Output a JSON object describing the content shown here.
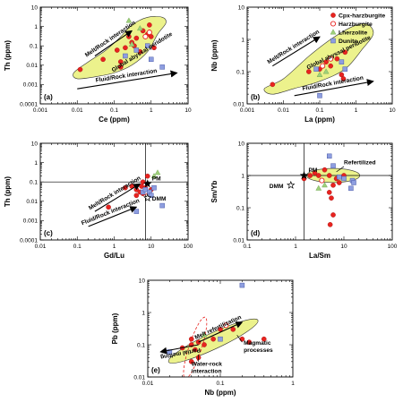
{
  "legend": [
    {
      "label": "Cpx-harzburgite",
      "marker": "filled-circle",
      "color": "#e8231f"
    },
    {
      "label": "Harzburgite",
      "marker": "open-circle",
      "color": "#e8231f"
    },
    {
      "label": "Lherzolite",
      "marker": "triangle",
      "color": "#9ed07a"
    },
    {
      "label": "Dunite",
      "marker": "square",
      "color": "#8e9ee0"
    }
  ],
  "colors": {
    "field_fill": "#ecf28c",
    "field_stroke": "#333333",
    "cpx_harzburgite": "#e8231f",
    "harzburgite": "#e8231f",
    "lherzolite": "#9ed07a",
    "dunite": "#8e9ee0"
  },
  "chart_data": [
    {
      "id": "a",
      "type": "scatter",
      "panel_label": "(a)",
      "xlabel": "Ce (ppm)",
      "ylabel": "Th (ppm)",
      "xscale": "log",
      "yscale": "log",
      "xlim": [
        0.001,
        10
      ],
      "ylim": [
        0.0001,
        10
      ],
      "xticks": [
        {
          "v": 0.001,
          "t": "0.001"
        },
        {
          "v": 0.01,
          "t": "0.01"
        },
        {
          "v": 0.1,
          "t": "0.1"
        },
        {
          "v": 1,
          "t": "1"
        },
        {
          "v": 10,
          "t": "10"
        }
      ],
      "yticks": [
        {
          "v": 0.0001,
          "t": "0.0001"
        },
        {
          "v": 0.001,
          "t": "0.001"
        },
        {
          "v": 0.01,
          "t": "0.01"
        },
        {
          "v": 0.1,
          "t": "0.1"
        },
        {
          "v": 1,
          "t": "1"
        },
        {
          "v": 10,
          "t": "10"
        }
      ],
      "field": {
        "label": "Global abyssal peridotite",
        "outline": [
          [
            0.008,
            0.004
          ],
          [
            0.02,
            0.015
          ],
          [
            0.06,
            0.06
          ],
          [
            0.15,
            0.3
          ],
          [
            0.3,
            1.2
          ],
          [
            0.8,
            3
          ],
          [
            2,
            3
          ],
          [
            2.5,
            1.5
          ],
          [
            1.5,
            0.4
          ],
          [
            0.8,
            0.05
          ],
          [
            0.3,
            0.01
          ],
          [
            0.1,
            0.004
          ],
          [
            0.03,
            0.0025
          ],
          [
            0.01,
            0.002
          ]
        ]
      },
      "annotations": [
        {
          "text": "Melt/Rock interaction",
          "arrow": [
            [
              0.03,
              0.03
            ],
            [
              0.3,
              0.6
            ]
          ]
        },
        {
          "text": "Fluid/Rock interaction",
          "arrow": [
            [
              0.01,
              0.0006
            ],
            [
              5,
              0.004
            ]
          ]
        }
      ],
      "series": [
        {
          "name": "Cpx-harzburgite",
          "points": [
            [
              0.012,
              0.006
            ],
            [
              0.05,
              0.02
            ],
            [
              0.12,
              0.06
            ],
            [
              0.15,
              0.015
            ],
            [
              0.2,
              0.08
            ],
            [
              0.25,
              0.3
            ],
            [
              0.3,
              0.15
            ],
            [
              0.35,
              0.1
            ],
            [
              0.4,
              0.25
            ],
            [
              0.5,
              0.05
            ],
            [
              0.6,
              0.6
            ],
            [
              0.8,
              0.4
            ],
            [
              1,
              0.3
            ],
            [
              1.2,
              0.08
            ],
            [
              0.15,
              0.008
            ],
            [
              0.9,
              1.2
            ]
          ]
        },
        {
          "name": "Harzburgite",
          "points": [
            [
              0.7,
              0.3
            ],
            [
              0.9,
              0.5
            ]
          ]
        },
        {
          "name": "Lherzolite",
          "points": [
            [
              0.25,
              2
            ],
            [
              0.3,
              0.12
            ],
            [
              0.5,
              0.8
            ]
          ]
        },
        {
          "name": "Dunite",
          "points": [
            [
              0.4,
              0.06
            ],
            [
              1,
              0.02
            ],
            [
              2,
              0.008
            ],
            [
              0.2,
              0.03
            ],
            [
              0.8,
              0.1
            ]
          ]
        }
      ]
    },
    {
      "id": "b",
      "type": "scatter",
      "panel_label": "(b)",
      "xlabel": "La (ppm)",
      "ylabel": "Nb (ppm)",
      "xscale": "log",
      "yscale": "log",
      "xlim": [
        0.001,
        10
      ],
      "ylim": [
        0.01,
        10
      ],
      "xticks": [
        {
          "v": 0.001,
          "t": "0.001"
        },
        {
          "v": 0.01,
          "t": "0.01"
        },
        {
          "v": 0.1,
          "t": "0.1"
        },
        {
          "v": 1,
          "t": "1"
        },
        {
          "v": 10,
          "t": "10"
        }
      ],
      "yticks": [
        {
          "v": 0.01,
          "t": "0.01"
        },
        {
          "v": 0.1,
          "t": "0.1"
        },
        {
          "v": 1,
          "t": "1"
        },
        {
          "v": 10,
          "t": "10"
        }
      ],
      "field": {
        "label": "Global abyssal peridotite",
        "outline": [
          [
            0.003,
            0.03
          ],
          [
            0.01,
            0.06
          ],
          [
            0.05,
            0.3
          ],
          [
            0.2,
            1
          ],
          [
            0.8,
            2.5
          ],
          [
            2,
            3
          ],
          [
            3,
            1.5
          ],
          [
            1.5,
            0.5
          ],
          [
            0.5,
            0.12
          ],
          [
            0.1,
            0.05
          ],
          [
            0.02,
            0.03
          ],
          [
            0.005,
            0.02
          ]
        ]
      },
      "annotations": [
        {
          "text": "Melt/Rock interaction",
          "arrow": [
            [
              0.005,
              0.15
            ],
            [
              0.1,
              1.2
            ]
          ]
        },
        {
          "text": "Fluid/Rock interaction",
          "arrow": [
            [
              0.02,
              0.018
            ],
            [
              3,
              0.05
            ]
          ]
        }
      ],
      "series": [
        {
          "name": "Cpx-harzburgite",
          "points": [
            [
              0.005,
              0.04
            ],
            [
              0.05,
              0.1
            ],
            [
              0.1,
              0.12
            ],
            [
              0.15,
              0.2
            ],
            [
              0.2,
              0.15
            ],
            [
              0.4,
              0.08
            ],
            [
              0.45,
              0.06
            ],
            [
              0.3,
              0.25
            ],
            [
              0.5,
              0.4
            ]
          ]
        },
        {
          "name": "Harzburgite",
          "points": [
            [
              0.12,
              0.15
            ],
            [
              0.2,
              0.25
            ]
          ]
        },
        {
          "name": "Lherzolite",
          "points": [
            [
              0.1,
              0.08
            ],
            [
              0.15,
              0.1
            ]
          ]
        },
        {
          "name": "Dunite",
          "points": [
            [
              0.08,
              0.12
            ],
            [
              0.4,
              0.2
            ],
            [
              0.5,
              0.12
            ],
            [
              0.1,
              0.018
            ]
          ]
        }
      ]
    },
    {
      "id": "c",
      "type": "scatter",
      "panel_label": "(c)",
      "xlabel": "Gd/Lu",
      "ylabel": "Th (ppm)",
      "xscale": "log",
      "yscale": "log",
      "xlim": [
        0.01,
        100
      ],
      "ylim": [
        0.0001,
        10
      ],
      "xticks": [
        {
          "v": 0.01,
          "t": "0.01"
        },
        {
          "v": 0.1,
          "t": "0.1"
        },
        {
          "v": 1,
          "t": "1"
        },
        {
          "v": 10,
          "t": "10"
        },
        {
          "v": 100,
          "t": "100"
        }
      ],
      "yticks": [
        {
          "v": 0.0001,
          "t": "0.0001"
        },
        {
          "v": 0.001,
          "t": "0.001"
        },
        {
          "v": 0.01,
          "t": "0.01"
        },
        {
          "v": 0.1,
          "t": "0.1"
        },
        {
          "v": 1,
          "t": "1"
        },
        {
          "v": 10,
          "t": "10"
        }
      ],
      "ref_lines": {
        "x": 7,
        "y": 0.1
      },
      "ref_points": [
        {
          "label": "PM",
          "x": 8,
          "y": 0.08,
          "marker": "star"
        },
        {
          "label": "DMM",
          "x": 8,
          "y": 0.015,
          "marker": "open-star"
        }
      ],
      "annotations": [
        {
          "text": "Melt/Rock interaction",
          "arrow": [
            [
              0.3,
              0.003
            ],
            [
              5,
              0.08
            ]
          ]
        },
        {
          "text": "Fluid/Rock interaction",
          "arrow": [
            [
              0.2,
              0.0005
            ],
            [
              4,
              0.005
            ]
          ]
        }
      ],
      "series": [
        {
          "name": "Cpx-harzburgite",
          "points": [
            [
              0.7,
              0.005
            ],
            [
              2,
              0.05
            ],
            [
              3,
              0.06
            ],
            [
              4,
              0.04
            ],
            [
              5,
              0.03
            ],
            [
              5.5,
              0.06
            ],
            [
              6,
              0.1
            ],
            [
              7,
              0.05
            ],
            [
              8,
              0.2
            ],
            [
              10,
              0.04
            ],
            [
              4,
              0.02
            ],
            [
              6,
              0.025
            ]
          ]
        },
        {
          "name": "Harzburgite",
          "points": [
            [
              7,
              0.03
            ]
          ]
        },
        {
          "name": "Lherzolite",
          "points": [
            [
              12,
              0.2
            ],
            [
              15,
              0.3
            ]
          ]
        },
        {
          "name": "Dunite",
          "points": [
            [
              4,
              0.003
            ],
            [
              6,
              0.03
            ],
            [
              7,
              0.04
            ],
            [
              9,
              0.03
            ],
            [
              10,
              0.02
            ],
            [
              20,
              0.006
            ],
            [
              12,
              0.05
            ]
          ]
        }
      ]
    },
    {
      "id": "d",
      "type": "scatter",
      "panel_label": "(d)",
      "xlabel": "La/Sm",
      "ylabel": "Sm/Yb",
      "xscale": "log",
      "yscale": "log",
      "xlim": [
        0.1,
        100
      ],
      "ylim": [
        0.01,
        10
      ],
      "xticks": [
        {
          "v": 0.1,
          "t": "0.1"
        },
        {
          "v": 1,
          "t": "1"
        },
        {
          "v": 10,
          "t": "10"
        },
        {
          "v": 100,
          "t": "100"
        }
      ],
      "yticks": [
        {
          "v": 0.01,
          "t": "0.01"
        },
        {
          "v": 0.1,
          "t": "0.1"
        },
        {
          "v": 1,
          "t": "1"
        },
        {
          "v": 10,
          "t": "10"
        }
      ],
      "ref_lines": {
        "x": 1.5,
        "y": 1
      },
      "ref_points": [
        {
          "label": "PM",
          "x": 1.5,
          "y": 1,
          "marker": "star"
        },
        {
          "label": "DMM",
          "x": 0.8,
          "y": 0.5,
          "marker": "open-star"
        }
      ],
      "field": {
        "label": "Refertilized",
        "ellipse": {
          "cx": 6,
          "cy": 1,
          "rx_decades": 0.55,
          "ry_decades": 0.22
        }
      },
      "annotations": [],
      "series": [
        {
          "name": "Cpx-harzburgite",
          "points": [
            [
              1.5,
              0.8
            ],
            [
              2,
              1
            ],
            [
              2.5,
              1.2
            ],
            [
              3,
              1
            ],
            [
              4,
              1.5
            ],
            [
              5,
              1
            ],
            [
              5,
              0.3
            ],
            [
              6,
              0.5
            ],
            [
              7,
              0.8
            ],
            [
              8,
              0.6
            ],
            [
              5.5,
              0.2
            ],
            [
              5.2,
              0.03
            ],
            [
              6,
              0.06
            ],
            [
              10,
              1
            ]
          ]
        },
        {
          "name": "Harzburgite",
          "points": [
            [
              3.5,
              0.7
            ]
          ]
        },
        {
          "name": "Lherzolite",
          "points": [
            [
              3,
              0.4
            ],
            [
              4,
              0.5
            ]
          ]
        },
        {
          "name": "Dunite",
          "points": [
            [
              5,
              4
            ],
            [
              6,
              2
            ],
            [
              10,
              0.8
            ],
            [
              15,
              0.7
            ],
            [
              16,
              0.6
            ],
            [
              14,
              0.4
            ],
            [
              8,
              0.9
            ]
          ]
        }
      ]
    },
    {
      "id": "e",
      "type": "scatter",
      "panel_label": "(e)",
      "xlabel": "Nb (ppm)",
      "ylabel": "Pb (ppm)",
      "xscale": "log",
      "yscale": "log",
      "xlim": [
        0.01,
        1
      ],
      "ylim": [
        0.01,
        10
      ],
      "xticks": [
        {
          "v": 0.01,
          "t": "0.01"
        },
        {
          "v": 0.1,
          "t": "0.1"
        },
        {
          "v": 1,
          "t": "1"
        }
      ],
      "yticks": [
        {
          "v": 0.01,
          "t": "0.01"
        },
        {
          "v": 0.1,
          "t": "0.1"
        },
        {
          "v": 1,
          "t": "1"
        },
        {
          "v": 10,
          "t": "10"
        }
      ],
      "field": {
        "label": "Melt refertilization"
      },
      "annotations": [
        {
          "text": "Partial melting",
          "arrow": [
            [
              0.05,
              0.1
            ],
            [
              0.015,
              0.06
            ]
          ]
        },
        {
          "text": "Melt refertilization",
          "arrow": [
            [
              0.05,
              0.12
            ],
            [
              0.2,
              0.5
            ]
          ]
        },
        {
          "text": "Magmatic processes",
          "arrow": []
        },
        {
          "text": "Water-rock interaction",
          "arrow": []
        }
      ],
      "series": [
        {
          "name": "Cpx-harzburgite",
          "points": [
            [
              0.03,
              0.08
            ],
            [
              0.04,
              0.1
            ],
            [
              0.04,
              0.15
            ],
            [
              0.045,
              0.07
            ],
            [
              0.05,
              0.12
            ],
            [
              0.06,
              0.1
            ],
            [
              0.08,
              0.15
            ],
            [
              0.1,
              0.3
            ],
            [
              0.15,
              0.3
            ],
            [
              0.2,
              0.15
            ],
            [
              0.25,
              0.12
            ],
            [
              0.4,
              0.15
            ],
            [
              0.05,
              0.04
            ],
            [
              0.04,
              0.03
            ]
          ]
        },
        {
          "name": "Harzburgite",
          "points": [
            [
              0.12,
              0.4
            ]
          ]
        },
        {
          "name": "Lherzolite",
          "points": [
            [
              0.06,
              0.2
            ]
          ]
        },
        {
          "name": "Dunite",
          "points": [
            [
              0.02,
              0.06
            ],
            [
              0.1,
              0.15
            ],
            [
              0.2,
              7
            ]
          ]
        }
      ]
    }
  ]
}
